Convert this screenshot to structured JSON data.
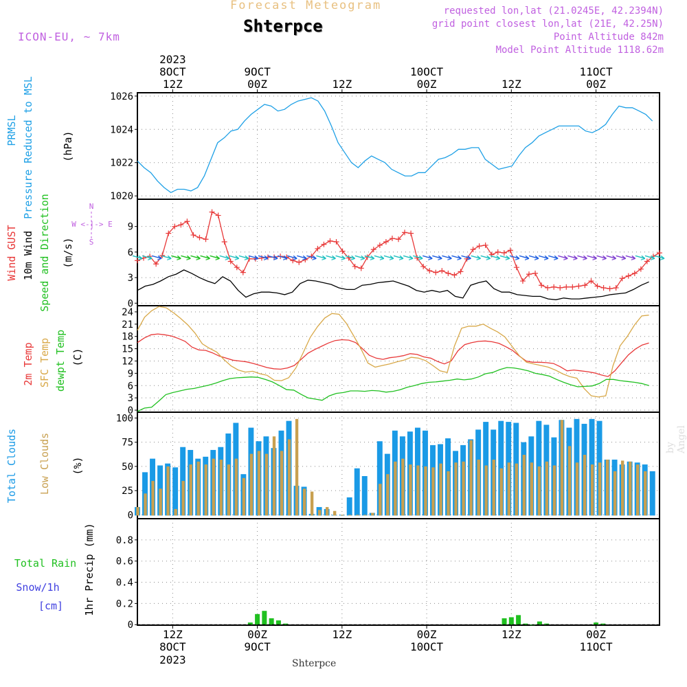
{
  "header": {
    "title": "Forecast Meteogram",
    "station": "Shterpce",
    "model": "ICON-EU, ~ 7km",
    "requested": "requested lon,lat (21.0245E, 42.2394N)",
    "grid_point": "grid point closest lon,lat (21E, 42.25N)",
    "point_altitude": "Point Altitude 842m",
    "model_altitude": "Model Point Altitude 1118.62m"
  },
  "footer": {
    "station": "Shterpce"
  },
  "watermark": "by Angel",
  "colors": {
    "pressure": "#1ea0e6",
    "gust": "#e83838",
    "wind": "#000000",
    "green": "#20c020",
    "sfc": "#d8a848",
    "total_clouds": "#1a9ae6",
    "low_clouds": "#c8a050",
    "snow": "#4040e0",
    "purple": "#c060e0"
  },
  "time_axis": {
    "top_ticks": [
      {
        "t": 12,
        "l1": "2023",
        "l2": "8OCT",
        "l3": "12Z"
      },
      {
        "t": 24,
        "l1": "",
        "l2": "9OCT",
        "l3": "00Z"
      },
      {
        "t": 36,
        "l1": "",
        "l2": "",
        "l3": "12Z"
      },
      {
        "t": 48,
        "l1": "",
        "l2": "10OCT",
        "l3": "00Z"
      },
      {
        "t": 60,
        "l1": "",
        "l2": "",
        "l3": "12Z"
      },
      {
        "t": 72,
        "l1": "",
        "l2": "11OCT",
        "l3": "00Z"
      }
    ],
    "bottom_ticks": [
      {
        "t": 12,
        "l1": "12Z",
        "l2": "8OCT",
        "l3": "2023"
      },
      {
        "t": 24,
        "l1": "00Z",
        "l2": "9OCT",
        "l3": ""
      },
      {
        "t": 36,
        "l1": "12Z",
        "l2": "",
        "l3": ""
      },
      {
        "t": 48,
        "l1": "00Z",
        "l2": "10OCT",
        "l3": ""
      },
      {
        "t": 60,
        "l1": "12Z",
        "l2": "",
        "l3": ""
      },
      {
        "t": 72,
        "l1": "00Z",
        "l2": "11OCT",
        "l3": ""
      }
    ]
  },
  "chart_data": [
    {
      "type": "line",
      "panel": "pressure",
      "ylabels": [
        "PRMSL",
        "Pressure Reduced to MSL",
        "(hPa)"
      ],
      "ylim": [
        1019.8,
        1026.2
      ],
      "yticks": [
        1020,
        1022,
        1024,
        1026
      ],
      "series": [
        {
          "name": "PRMSL",
          "color": "#1ea0e6",
          "values": [
            1022.1,
            1021.7,
            1021.4,
            1020.9,
            1020.5,
            1020.2,
            1020.4,
            1020.4,
            1020.3,
            1020.5,
            1021.2,
            1022.2,
            1023.2,
            1023.5,
            1023.9,
            1024.0,
            1024.5,
            1024.9,
            1025.2,
            1025.5,
            1025.4,
            1025.1,
            1025.2,
            1025.5,
            1025.7,
            1025.8,
            1025.9,
            1025.7,
            1025.1,
            1024.2,
            1023.2,
            1022.6,
            1022.0,
            1021.7,
            1022.1,
            1022.4,
            1022.2,
            1022.0,
            1021.6,
            1021.4,
            1021.2,
            1021.2,
            1021.4,
            1021.4,
            1021.8,
            1022.2,
            1022.3,
            1022.5,
            1022.8,
            1022.8,
            1022.9,
            1022.9,
            1022.2,
            1021.9,
            1021.6,
            1021.7,
            1021.8,
            1022.4,
            1022.9,
            1023.2,
            1023.6,
            1023.8,
            1024.0,
            1024.2,
            1024.2,
            1024.2,
            1024.2,
            1023.9,
            1023.8,
            1024.0,
            1024.3,
            1024.9,
            1025.4,
            1025.3,
            1025.3,
            1025.1,
            1024.9,
            1024.5
          ]
        }
      ]
    },
    {
      "type": "line",
      "panel": "wind",
      "ylabels": [
        "Wind GUST",
        "10m Wind",
        "Speed and Direction",
        "(m/s)"
      ],
      "compass": [
        "N",
        "S",
        "W <-|-> E"
      ],
      "ylim": [
        -0.3,
        12.2
      ],
      "yticks": [
        0,
        3,
        6,
        9
      ],
      "series": [
        {
          "name": "Wind GUST",
          "color": "#e83838",
          "marker": "+",
          "values": [
            5.0,
            5.3,
            5.5,
            4.6,
            5.6,
            8.2,
            9.0,
            9.2,
            9.6,
            8.0,
            7.7,
            7.5,
            10.7,
            10.3,
            7.2,
            4.9,
            4.2,
            3.6,
            5.2,
            5.2,
            5.3,
            5.4,
            5.4,
            5.5,
            5.4,
            5.0,
            4.8,
            5.1,
            5.5,
            6.4,
            6.9,
            7.3,
            7.2,
            6.1,
            5.3,
            4.3,
            4.1,
            5.4,
            6.3,
            6.8,
            7.2,
            7.6,
            7.5,
            8.3,
            8.2,
            5.3,
            4.3,
            3.8,
            3.6,
            3.8,
            3.5,
            3.3,
            3.7,
            5.2,
            6.3,
            6.7,
            6.8,
            5.7,
            6.0,
            5.9,
            6.2,
            4.2,
            2.6,
            3.4,
            3.5,
            2.1,
            1.8,
            1.9,
            1.8,
            1.9,
            1.9,
            2.0,
            2.1,
            2.6,
            2.0,
            1.8,
            1.7,
            1.8,
            2.9,
            3.2,
            3.5,
            4.0,
            4.9,
            5.5,
            5.9
          ]
        },
        {
          "name": "10m Wind",
          "color": "#000000",
          "values": [
            1.5,
            2.0,
            2.2,
            2.6,
            3.1,
            3.4,
            3.9,
            3.5,
            3.0,
            2.6,
            2.3,
            3.1,
            2.6,
            1.5,
            0.7,
            1.1,
            1.3,
            1.3,
            1.2,
            1.0,
            1.3,
            2.3,
            2.7,
            2.6,
            2.4,
            2.2,
            1.8,
            1.6,
            1.6,
            2.1,
            2.2,
            2.4,
            2.5,
            2.6,
            2.3,
            2.0,
            1.5,
            1.3,
            1.5,
            1.3,
            1.5,
            0.8,
            0.6,
            2.1,
            2.4,
            2.6,
            1.7,
            1.3,
            1.3,
            1.0,
            0.9,
            0.8,
            0.8,
            0.5,
            0.4,
            0.6,
            0.5,
            0.5,
            0.6,
            0.7,
            0.8,
            1.0,
            1.1,
            1.2,
            1.6,
            2.1,
            2.5
          ]
        },
        {
          "name": "Wind direction",
          "color": "#20c020",
          "arrow_colors": [
            "#20c0c0",
            "#20c0c0",
            "#2060e0",
            "#20c0c0",
            "#20c020",
            "#20c020",
            "#20c020",
            "#20c020",
            "#20c020",
            "#20c0c0",
            "#20c0c0",
            "#20c0c0",
            "#2060e0",
            "#2060e0",
            "#2060e0",
            "#2060e0",
            "#2060e0",
            "#2060e0",
            "#2060e0",
            "#20c0c0",
            "#20c0c0",
            "#20c0c0",
            "#20c0c0",
            "#20c0c0",
            "#20c0c0",
            "#20c0c0",
            "#20c0c0",
            "#20c0c0",
            "#20c0c0",
            "#20c0c0",
            "#2060e0",
            "#2060e0",
            "#2060e0",
            "#2060e0",
            "#2060e0",
            "#20c0c0",
            "#20c0c0",
            "#20c0c0",
            "#20c0c0",
            "#2060e0",
            "#2060e0",
            "#2060e0",
            "#2060e0",
            "#2060e0",
            "#8040d0",
            "#8040d0",
            "#8040d0",
            "#8040d0",
            "#8040d0",
            "#8040d0",
            "#8040d0",
            "#8040d0",
            "#20c0c0",
            "#20c0c0",
            "#20c0c0"
          ]
        }
      ]
    },
    {
      "type": "line",
      "panel": "temperature",
      "ylabels": [
        "2m Temp",
        "SFC Temp",
        "dewpt Temp",
        "(C)"
      ],
      "ylim": [
        -0.5,
        25.5
      ],
      "yticks": [
        0,
        3,
        6,
        9,
        12,
        15,
        18,
        21,
        24
      ],
      "series": [
        {
          "name": "2m Temp",
          "color": "#e83838",
          "values": [
            16.5,
            17.6,
            18.4,
            18.6,
            18.4,
            18.1,
            17.5,
            16.8,
            15.4,
            14.7,
            14.6,
            14.0,
            13.2,
            12.7,
            12.2,
            12.0,
            11.8,
            11.4,
            10.9,
            10.4,
            10.1,
            10.0,
            10.3,
            10.9,
            12.4,
            13.9,
            14.8,
            15.6,
            16.4,
            17.0,
            17.2,
            17.1,
            16.5,
            15.0,
            13.4,
            12.7,
            12.4,
            12.8,
            13.0,
            13.3,
            13.8,
            13.6,
            13.0,
            12.7,
            11.9,
            11.3,
            12.0,
            14.5,
            16.0,
            16.5,
            16.8,
            16.9,
            16.7,
            16.3,
            15.5,
            14.6,
            13.2,
            12.0,
            11.7,
            11.7,
            11.6,
            11.4,
            10.6,
            9.6,
            9.8,
            9.6,
            9.4,
            9.1,
            8.6,
            8.2,
            9.6,
            11.6,
            13.5,
            14.9,
            15.9,
            16.4
          ]
        },
        {
          "name": "SFC Temp",
          "color": "#d8a848",
          "values": [
            19.5,
            22.7,
            24.3,
            25.3,
            25.0,
            23.8,
            22.4,
            20.8,
            18.8,
            16.2,
            15.1,
            14.2,
            12.4,
            10.8,
            9.8,
            9.3,
            9.5,
            8.9,
            8.5,
            7.3,
            7.2,
            7.9,
            10.3,
            14.0,
            17.8,
            20.4,
            22.5,
            23.6,
            23.4,
            21.2,
            18.2,
            15.1,
            11.5,
            10.5,
            10.9,
            11.3,
            11.8,
            12.2,
            12.9,
            12.7,
            12.1,
            10.9,
            9.6,
            9.2,
            15.6,
            20.0,
            20.5,
            20.5,
            21.0,
            20.0,
            19.1,
            17.9,
            15.6,
            13.3,
            11.7,
            11.3,
            10.9,
            10.5,
            9.8,
            8.9,
            8.2,
            7.8,
            5.3,
            3.5,
            3.2,
            3.5,
            10.8,
            15.7,
            18.0,
            20.8,
            23.0,
            23.2
          ]
        },
        {
          "name": "dewpt Temp",
          "color": "#20c020",
          "values": [
            -0.3,
            0.5,
            0.7,
            2.2,
            3.8,
            4.3,
            4.7,
            5.1,
            5.3,
            5.7,
            6.1,
            6.6,
            7.2,
            7.7,
            7.9,
            8.0,
            8.1,
            8.0,
            7.5,
            6.9,
            6.0,
            5.0,
            4.9,
            3.9,
            3.0,
            2.7,
            2.4,
            3.5,
            4.1,
            4.3,
            4.7,
            4.7,
            4.6,
            4.8,
            4.7,
            4.4,
            4.6,
            5.0,
            5.6,
            6.0,
            6.5,
            6.8,
            6.9,
            7.1,
            7.3,
            7.6,
            7.4,
            7.6,
            8.1,
            8.9,
            9.2,
            9.9,
            10.4,
            10.3,
            10.0,
            9.6,
            9.0,
            8.7,
            8.3,
            7.5,
            6.8,
            6.2,
            5.7,
            5.8,
            5.9,
            6.5,
            7.5,
            7.5,
            7.2,
            7.0,
            6.8,
            6.5,
            6.0
          ]
        }
      ]
    },
    {
      "type": "bar",
      "panel": "clouds",
      "ylabels": [
        "Total Clouds",
        "Low Clouds",
        "(%)"
      ],
      "ylim": [
        -4,
        106
      ],
      "yticks": [
        0,
        25,
        50,
        75,
        100
      ],
      "series": [
        {
          "name": "Total Clouds",
          "color": "#1a9ae6",
          "values": [
            8,
            44,
            58,
            51,
            53,
            49,
            70,
            67,
            58,
            60,
            67,
            70,
            84,
            95,
            42,
            90,
            76,
            81,
            69,
            87,
            97,
            30,
            29,
            1,
            8,
            6,
            0,
            0,
            18,
            48,
            40,
            2,
            76,
            63,
            87,
            81,
            86,
            90,
            87,
            72,
            73,
            79,
            66,
            72,
            78,
            88,
            96,
            88,
            97,
            96,
            95,
            75,
            81,
            97,
            93,
            80,
            98,
            90,
            99,
            94,
            99,
            97,
            57,
            57,
            52,
            55,
            54,
            52,
            45
          ]
        },
        {
          "name": "Low Clouds",
          "color": "#c8a050",
          "values": [
            8,
            22,
            35,
            27,
            50,
            6,
            35,
            52,
            55,
            52,
            58,
            57,
            52,
            58,
            38,
            63,
            66,
            63,
            81,
            66,
            78,
            99,
            27,
            24,
            5,
            8,
            4,
            0,
            0,
            0,
            0,
            2,
            32,
            42,
            55,
            58,
            52,
            51,
            50,
            49,
            53,
            45,
            54,
            55,
            77,
            57,
            51,
            57,
            48,
            54,
            53,
            62,
            54,
            50,
            55,
            51,
            98,
            71,
            54,
            62,
            52,
            54,
            57,
            45,
            56,
            55,
            52,
            45
          ]
        }
      ]
    },
    {
      "type": "bar",
      "panel": "precipitation",
      "ylabels": [
        "Total Rain",
        "Snow/1h",
        "[cm]",
        "1hr Precip (mm)"
      ],
      "ylim": [
        -0.005,
        1.0
      ],
      "yticks": [
        0,
        0.2,
        0.4,
        0.6,
        0.8
      ],
      "series": [
        {
          "name": "Total Rain",
          "color": "#20c020",
          "hours": [
            23,
            24,
            25,
            26,
            27,
            28,
            59,
            60,
            61,
            62,
            63,
            64,
            65,
            72,
            73
          ],
          "values": [
            0.02,
            0.1,
            0.13,
            0.06,
            0.04,
            0.01,
            0.06,
            0.07,
            0.09,
            0.01,
            0.0,
            0.03,
            0.01,
            0.02,
            0.01
          ]
        },
        {
          "name": "Snow/1h",
          "color": "#4040e0",
          "hours": [],
          "values": []
        }
      ]
    }
  ]
}
